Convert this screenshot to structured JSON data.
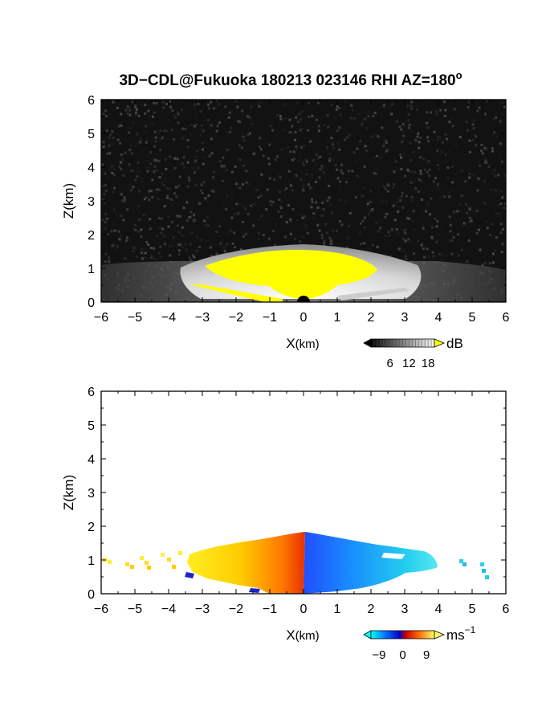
{
  "figure": {
    "title_main": "3D−CDL@Fukuoka 180213 023146 RHI AZ=180",
    "title_sup": "o"
  },
  "chart_data": [
    {
      "type": "heatmap",
      "panel": "snr",
      "xlabel_main": "X",
      "xlabel_unit": "(km)",
      "ylabel": "Z(km)",
      "xlim": [
        -6,
        6
      ],
      "ylim": [
        0,
        6
      ],
      "x_ticks": [
        "−6",
        "−5",
        "−4",
        "−3",
        "−2",
        "−1",
        "0",
        "1",
        "2",
        "3",
        "4",
        "5",
        "6"
      ],
      "y_ticks": [
        "0",
        "1",
        "2",
        "3",
        "4",
        "5",
        "6"
      ],
      "colorscale": {
        "min": 0,
        "max": 20,
        "low_color": "#000000",
        "high_color": "#ffffff",
        "over_color": "#ffff00"
      },
      "colorbar": {
        "ticks": [
          "6",
          "12",
          "18"
        ],
        "tick_values": [
          6,
          12,
          18
        ],
        "unit": "dB"
      },
      "echo_region": "semi-elliptical return from about x=−4.5 to x=4.5 km, peaking near z=1.5 km at x=0; values above 18 dB (yellow) fill the core from about x=−3 to x=3 km below z=1.4 km"
    },
    {
      "type": "heatmap",
      "panel": "doppler",
      "xlabel_main": "X",
      "xlabel_unit": "(km)",
      "ylabel": "Z(km)",
      "xlim": [
        -6,
        6
      ],
      "ylim": [
        0,
        6
      ],
      "x_ticks": [
        "−6",
        "−5",
        "−4",
        "−3",
        "−2",
        "−1",
        "0",
        "1",
        "2",
        "3",
        "4",
        "5",
        "6"
      ],
      "y_ticks": [
        "0",
        "1",
        "2",
        "3",
        "4",
        "5",
        "6"
      ],
      "colorscale": {
        "min": -12,
        "max": 12,
        "stops": [
          "#00ffff",
          "#0077ff",
          "#0000cc",
          "#cc0000",
          "#ff6600",
          "#ffdd00",
          "#ffff66"
        ]
      },
      "colorbar": {
        "ticks": [
          "−9",
          "0",
          "9"
        ],
        "tick_values": [
          -9,
          0,
          9
        ],
        "unit_main": "ms",
        "unit_sup": "−1"
      },
      "echo_region": "velocity field from about x=−3.5 to x=4 km below z=1.8 km: positive (red to yellow) velocities for x<0, negative (blue to cyan) for x>0, plus isolated echoes near x=−5.5 to −4.5 km and x=4.5 to 5.5 km"
    }
  ]
}
